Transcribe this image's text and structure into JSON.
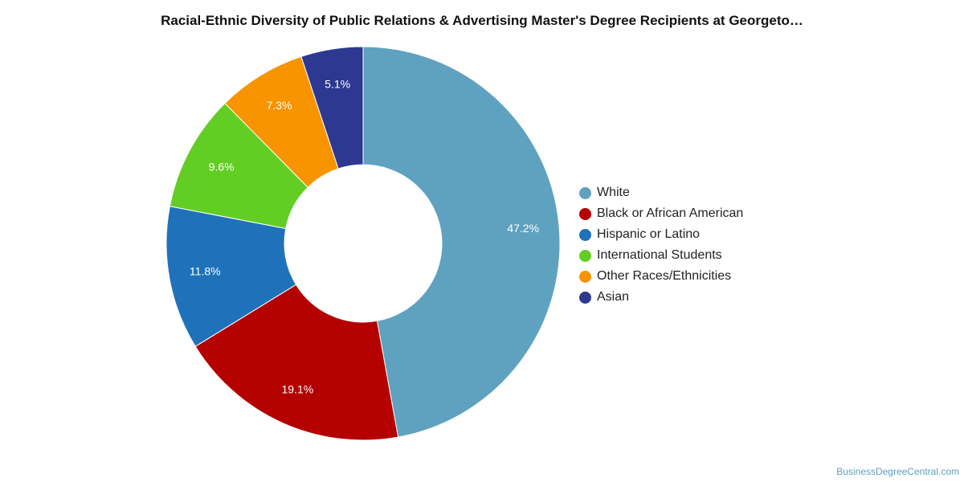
{
  "chart_data": {
    "type": "pie",
    "title": "Racial-Ethnic Diversity of Public Relations & Advertising Master's Degree Recipients at Georgeto…",
    "donut": true,
    "legend_position": "right",
    "categories": [
      "White",
      "Black or African American",
      "Hispanic or Latino",
      "International Students",
      "Other Races/Ethnicities",
      "Asian"
    ],
    "values": [
      47.2,
      19.1,
      11.8,
      9.6,
      7.3,
      5.1
    ],
    "labels": [
      "47.2%",
      "19.1%",
      "11.8%",
      "9.6%",
      "7.3%",
      "5.1%"
    ],
    "colors": [
      "#5fa2bf",
      "#b50000",
      "#1f72b9",
      "#62ce24",
      "#f79400",
      "#2d3890"
    ]
  },
  "credit": "BusinessDegreeCentral.com"
}
